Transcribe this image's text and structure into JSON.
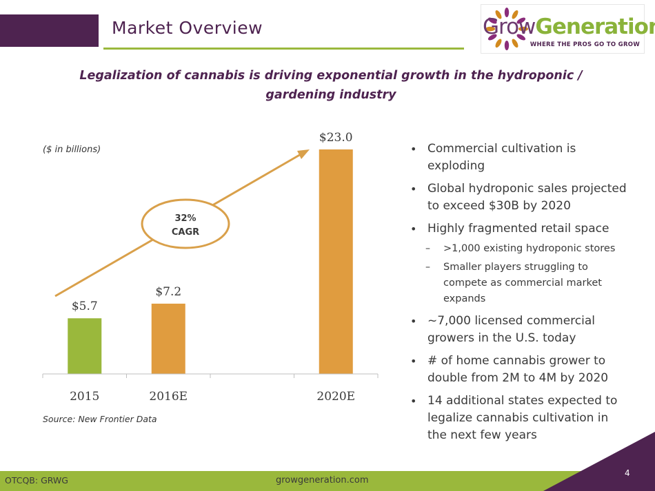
{
  "header": {
    "title": "Market Overview"
  },
  "logo": {
    "word_part1": "Grow",
    "word_part2": "Generation",
    "tagline": "WHERE THE PROS GO TO GROW"
  },
  "subtitle": "Legalization of cannabis is driving exponential  growth in the hydroponic / gardening industry",
  "chart_data": {
    "type": "bar",
    "categories": [
      "2015",
      "2016E",
      "",
      "2020E"
    ],
    "values": [
      5.7,
      7.2,
      null,
      23.0
    ],
    "value_labels": [
      "$5.7",
      "$7.2",
      "",
      "$23.0"
    ],
    "bar_colors": [
      "#9ab83c",
      "#e09c3f",
      "",
      "#e09c3f"
    ],
    "ylim": [
      0,
      23.0
    ],
    "units_note": "($ in billions)",
    "annotation": {
      "line1": "32%",
      "line2": "CAGR"
    },
    "source": "Source: New Frontier Data",
    "grid": false,
    "legend": "none"
  },
  "bullets": [
    {
      "text": "Commercial cultivation is exploding",
      "level": 1
    },
    {
      "text": "Global hydroponic sales projected to exceed $30B by 2020",
      "level": 1
    },
    {
      "text": "Highly fragmented retail space",
      "level": 1
    },
    {
      "text": ">1,000 existing hydroponic stores",
      "level": 2
    },
    {
      "text": "Smaller players struggling to compete as commercial market expands",
      "level": 2
    },
    {
      "text": "~7,000 licensed commercial growers in the U.S. today",
      "level": 1
    },
    {
      "text": "# of home cannabis grower to double from 2M to 4M by 2020",
      "level": 1
    },
    {
      "text": "14 additional states expected to legalize cannabis cultivation in the next few years",
      "level": 1
    }
  ],
  "footer": {
    "ticker": "OTCQB: GRWG",
    "website": "growgeneration.com",
    "page_number": "4"
  },
  "colors": {
    "brand_purple": "#4e2350",
    "brand_green": "#9ab83c",
    "bar_orange": "#e09c3f"
  }
}
